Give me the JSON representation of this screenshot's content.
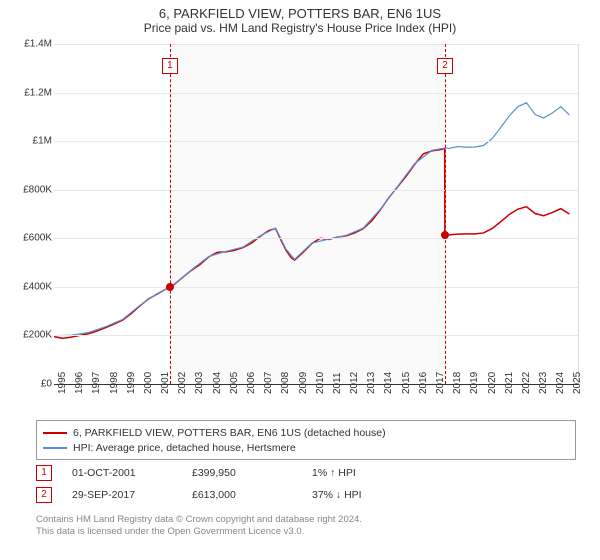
{
  "title": "6, PARKFIELD VIEW, POTTERS BAR, EN6 1US",
  "subtitle": "Price paid vs. HM Land Registry's House Price Index (HPI)",
  "chart": {
    "type": "line",
    "background_color": "#ffffff",
    "shaded_color": "#fafafa",
    "grid_color": "#e8e8e8",
    "ylim": [
      0,
      1400000
    ],
    "ytick_step": 200000,
    "y_labels": [
      "£0",
      "£200K",
      "£400K",
      "£600K",
      "£800K",
      "£1M",
      "£1.2M",
      "£1.4M"
    ],
    "x_start": 1995,
    "x_end": 2025.5,
    "x_ticks": [
      1995,
      1996,
      1997,
      1998,
      1999,
      2000,
      2001,
      2002,
      2003,
      2004,
      2005,
      2006,
      2007,
      2008,
      2009,
      2010,
      2011,
      2012,
      2013,
      2014,
      2015,
      2016,
      2017,
      2018,
      2019,
      2020,
      2021,
      2022,
      2023,
      2024,
      2025
    ],
    "markers": [
      {
        "n": "1",
        "x": 2001.75,
        "y": 399950
      },
      {
        "n": "2",
        "x": 2017.75,
        "y": 613000
      }
    ],
    "series": [
      {
        "name": "price_paid",
        "color": "#cc0000",
        "width": 1.5,
        "points": [
          [
            1995.0,
            195000
          ],
          [
            1995.5,
            188000
          ],
          [
            1996.0,
            193000
          ],
          [
            1996.5,
            200000
          ],
          [
            1997.0,
            207000
          ],
          [
            1997.5,
            218000
          ],
          [
            1998.0,
            232000
          ],
          [
            1998.5,
            247000
          ],
          [
            1999.0,
            263000
          ],
          [
            1999.5,
            290000
          ],
          [
            2000.0,
            322000
          ],
          [
            2000.5,
            350000
          ],
          [
            2001.0,
            370000
          ],
          [
            2001.5,
            390000
          ],
          [
            2001.75,
            399950
          ],
          [
            2002.0,
            410000
          ],
          [
            2002.5,
            440000
          ],
          [
            2003.0,
            468000
          ],
          [
            2003.5,
            492000
          ],
          [
            2004.0,
            523000
          ],
          [
            2004.5,
            542000
          ],
          [
            2005.0,
            544000
          ],
          [
            2005.5,
            550000
          ],
          [
            2006.0,
            562000
          ],
          [
            2006.5,
            580000
          ],
          [
            2007.0,
            608000
          ],
          [
            2007.5,
            632000
          ],
          [
            2007.9,
            640000
          ],
          [
            2008.2,
            594000
          ],
          [
            2008.5,
            552000
          ],
          [
            2008.8,
            520000
          ],
          [
            2009.0,
            510000
          ],
          [
            2009.5,
            542000
          ],
          [
            2010.0,
            578000
          ],
          [
            2010.5,
            600000
          ],
          [
            2011.0,
            595000
          ],
          [
            2011.5,
            605000
          ],
          [
            2012.0,
            610000
          ],
          [
            2012.5,
            622000
          ],
          [
            2013.0,
            640000
          ],
          [
            2013.5,
            672000
          ],
          [
            2014.0,
            718000
          ],
          [
            2014.5,
            768000
          ],
          [
            2015.0,
            812000
          ],
          [
            2015.5,
            856000
          ],
          [
            2016.0,
            905000
          ],
          [
            2016.5,
            948000
          ],
          [
            2017.0,
            960000
          ],
          [
            2017.5,
            965000
          ],
          [
            2017.74,
            970000
          ],
          [
            2017.75,
            613000
          ],
          [
            2018.0,
            614000
          ],
          [
            2018.5,
            617000
          ],
          [
            2019.0,
            618000
          ],
          [
            2019.5,
            618000
          ],
          [
            2020.0,
            622000
          ],
          [
            2020.5,
            640000
          ],
          [
            2021.0,
            668000
          ],
          [
            2021.5,
            698000
          ],
          [
            2022.0,
            720000
          ],
          [
            2022.5,
            730000
          ],
          [
            2023.0,
            702000
          ],
          [
            2023.5,
            693000
          ],
          [
            2024.0,
            706000
          ],
          [
            2024.5,
            722000
          ],
          [
            2025.0,
            700000
          ]
        ]
      },
      {
        "name": "hpi",
        "color": "#5b8fd6",
        "width": 1.2,
        "points": [
          [
            1995.0,
            199000
          ],
          [
            1996.0,
            201000
          ],
          [
            1997.0,
            212000
          ],
          [
            1998.0,
            236000
          ],
          [
            1999.0,
            266000
          ],
          [
            2000.0,
            324000
          ],
          [
            2001.0,
            372000
          ],
          [
            2001.75,
            399000
          ],
          [
            2002.0,
            412000
          ],
          [
            2003.0,
            470000
          ],
          [
            2004.0,
            525000
          ],
          [
            2005.0,
            546000
          ],
          [
            2006.0,
            564000
          ],
          [
            2007.0,
            610000
          ],
          [
            2007.9,
            642000
          ],
          [
            2008.5,
            556000
          ],
          [
            2009.0,
            513000
          ],
          [
            2010.0,
            580000
          ],
          [
            2011.0,
            597000
          ],
          [
            2012.0,
            612000
          ],
          [
            2013.0,
            642000
          ],
          [
            2014.0,
            720000
          ],
          [
            2015.0,
            814000
          ],
          [
            2016.0,
            908000
          ],
          [
            2017.0,
            962000
          ],
          [
            2017.75,
            972000
          ],
          [
            2018.0,
            970000
          ],
          [
            2018.5,
            978000
          ],
          [
            2019.0,
            975000
          ],
          [
            2019.5,
            976000
          ],
          [
            2020.0,
            982000
          ],
          [
            2020.5,
            1010000
          ],
          [
            2021.0,
            1056000
          ],
          [
            2021.5,
            1104000
          ],
          [
            2022.0,
            1142000
          ],
          [
            2022.5,
            1158000
          ],
          [
            2023.0,
            1110000
          ],
          [
            2023.5,
            1095000
          ],
          [
            2024.0,
            1116000
          ],
          [
            2024.5,
            1142000
          ],
          [
            2025.0,
            1108000
          ]
        ]
      }
    ]
  },
  "legend": {
    "items": [
      {
        "color": "#cc0000",
        "label": "6, PARKFIELD VIEW, POTTERS BAR, EN6 1US (detached house)"
      },
      {
        "color": "#5b8fd6",
        "label": "HPI: Average price, detached house, Hertsmere"
      }
    ]
  },
  "transactions": [
    {
      "n": "1",
      "date": "01-OCT-2001",
      "price": "£399,950",
      "delta": "1% ↑ HPI"
    },
    {
      "n": "2",
      "date": "29-SEP-2017",
      "price": "£613,000",
      "delta": "37% ↓ HPI"
    }
  ],
  "footer": {
    "line1": "Contains HM Land Registry data © Crown copyright and database right 2024.",
    "line2": "This data is licensed under the Open Government Licence v3.0."
  }
}
